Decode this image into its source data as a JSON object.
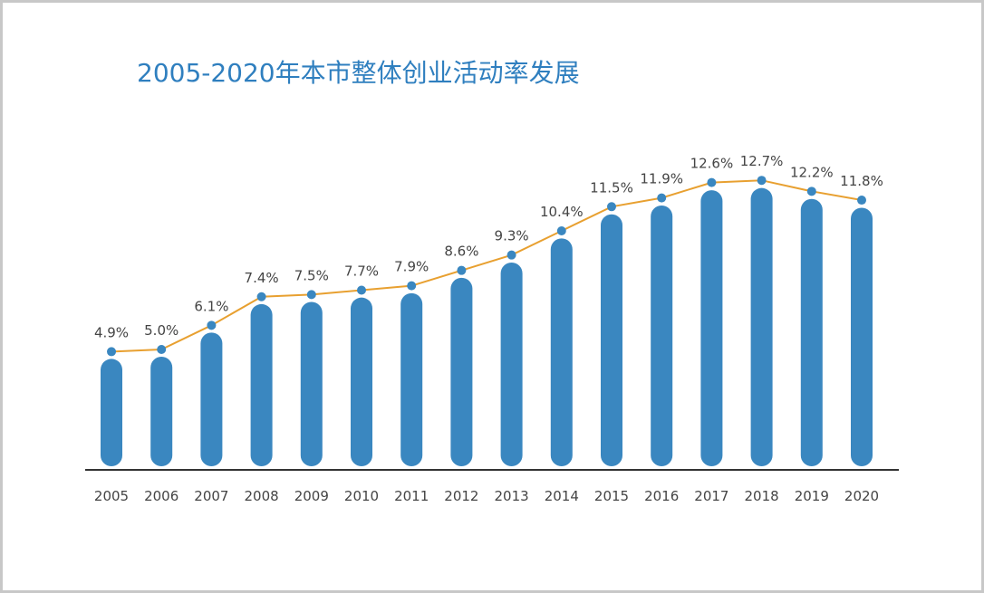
{
  "chart_data": {
    "type": "bar",
    "title": "2005-2020年本市整体创业活动率发展",
    "categories": [
      "2005",
      "2006",
      "2007",
      "2008",
      "2009",
      "2010",
      "2011",
      "2012",
      "2013",
      "2014",
      "2015",
      "2016",
      "2017",
      "2018",
      "2019",
      "2020"
    ],
    "series": [
      {
        "type": "bar",
        "values": [
          4.9,
          5.0,
          6.1,
          7.4,
          7.5,
          7.7,
          7.9,
          8.6,
          9.3,
          10.4,
          11.5,
          11.9,
          12.6,
          12.7,
          12.2,
          11.8
        ]
      },
      {
        "type": "line",
        "values": [
          4.9,
          5.0,
          6.1,
          7.4,
          7.5,
          7.7,
          7.9,
          8.6,
          9.3,
          10.4,
          11.5,
          11.9,
          12.6,
          12.7,
          12.2,
          11.8
        ]
      }
    ],
    "data_labels": [
      "4.9%",
      "5.0%",
      "6.1%",
      "7.4%",
      "7.5%",
      "7.7%",
      "7.9%",
      "8.6%",
      "9.3%",
      "10.4%",
      "11.5%",
      "11.9%",
      "12.6%",
      "12.7%",
      "12.2%",
      "11.8%"
    ],
    "unit": "%",
    "xlabel": "",
    "ylabel": "",
    "grid": false,
    "legend": "none",
    "colors": {
      "bar": "#3a87c0",
      "line": "#e8a030",
      "marker": "#3a87c0",
      "title": "#2f7fbf",
      "axis": "#333333"
    }
  }
}
